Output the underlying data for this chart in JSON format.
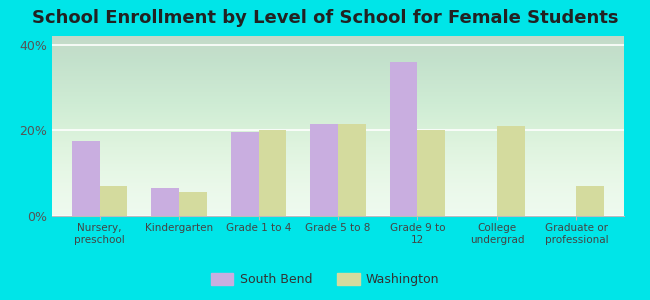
{
  "title": "School Enrollment by Level of School for Female Students",
  "categories": [
    "Nursery,\npreschool",
    "Kindergarten",
    "Grade 1 to 4",
    "Grade 5 to 8",
    "Grade 9 to\n12",
    "College\nundergrad",
    "Graduate or\nprofessional"
  ],
  "south_bend": [
    17.5,
    6.5,
    19.5,
    21.5,
    36.0,
    0.0,
    0.0
  ],
  "washington": [
    7.0,
    5.5,
    20.0,
    21.5,
    20.0,
    21.0,
    7.0
  ],
  "south_bend_color": "#c9aee0",
  "washington_color": "#d4db9e",
  "ylim": [
    0,
    42
  ],
  "yticks": [
    0,
    20,
    40
  ],
  "ytick_labels": [
    "0%",
    "20%",
    "40%"
  ],
  "background_color": "#00e5e8",
  "plot_bg_color": "#edfaee",
  "legend_labels": [
    "South Bend",
    "Washington"
  ],
  "bar_width": 0.35,
  "title_fontsize": 13
}
